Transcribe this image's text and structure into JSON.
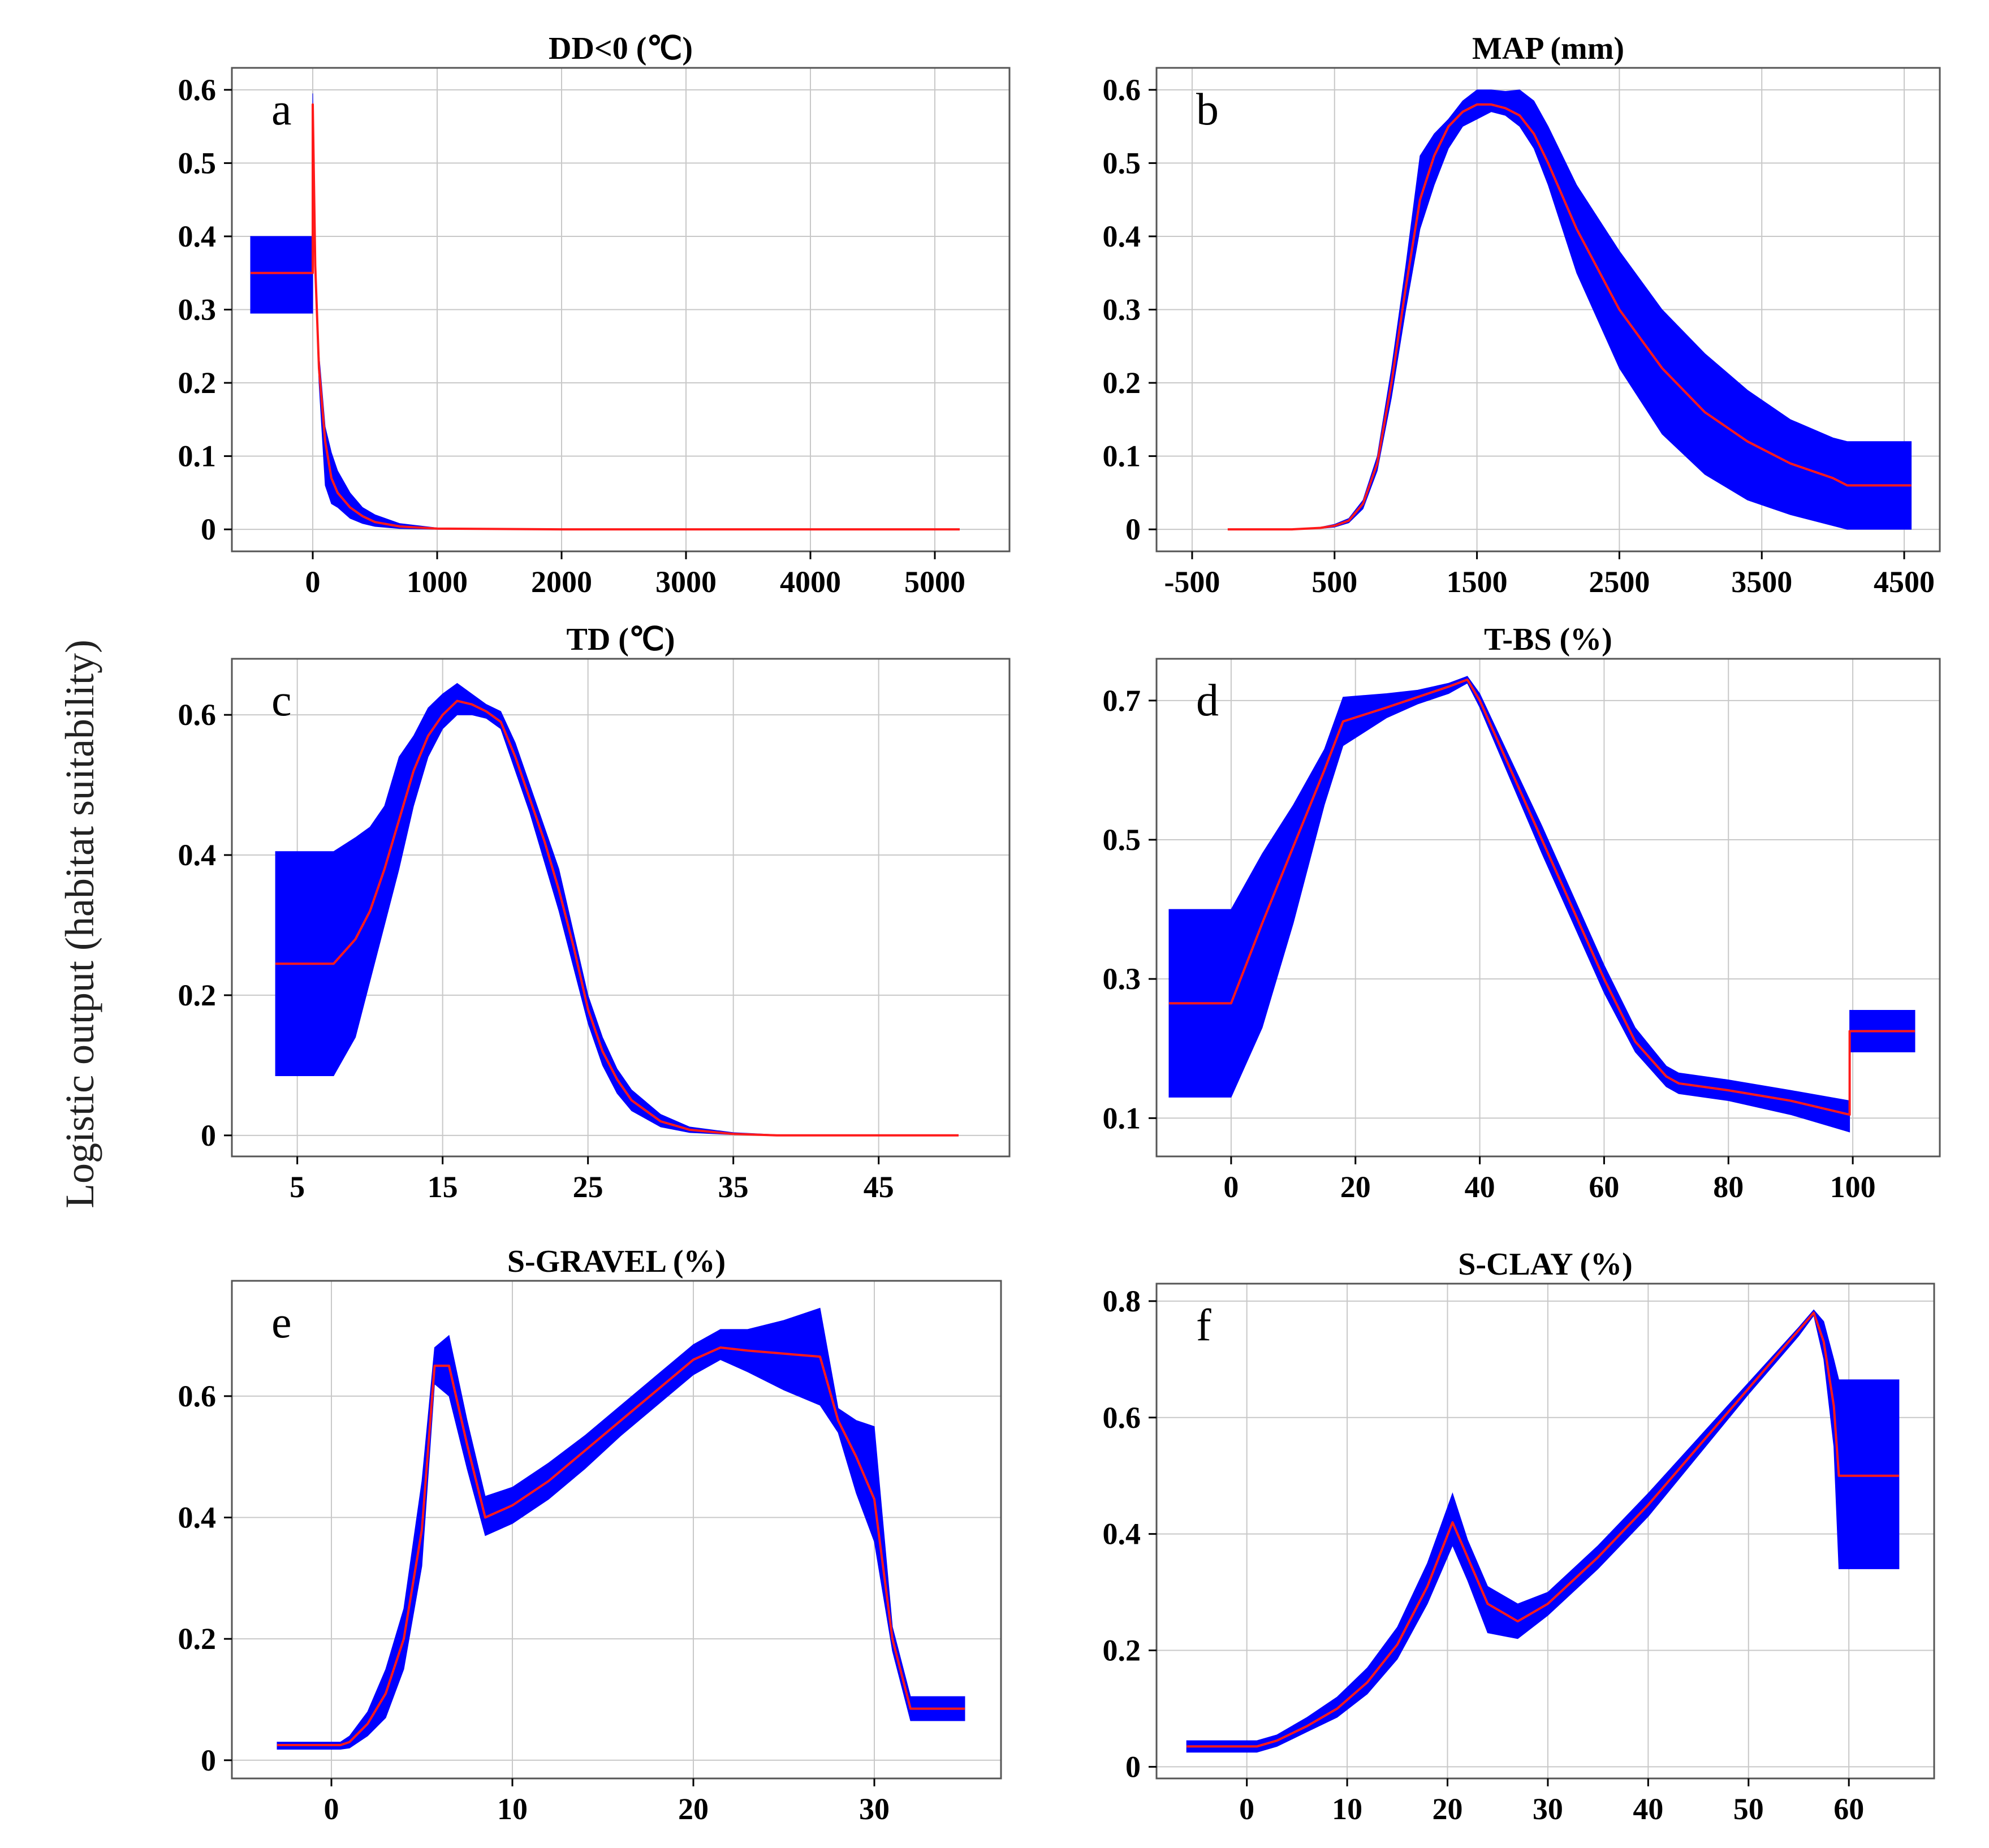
{
  "figure": {
    "ylabel": "Logistic output (habitat suitability)",
    "colors": {
      "band": "#0000ff",
      "line": "#ff1a1a",
      "grid": "#c8c8c8",
      "axis": "#555555"
    }
  },
  "chart_data": [
    {
      "letter": "a",
      "type": "area",
      "title": "DD<0 (℃)",
      "xlim": [
        -650,
        5600
      ],
      "ylim": [
        -0.03,
        0.63
      ],
      "xticks": [
        0,
        1000,
        2000,
        3000,
        4000,
        5000
      ],
      "xtick_labels": [
        "0",
        "1000",
        "2000",
        "3000",
        "4000",
        "5000"
      ],
      "yticks": [
        0,
        0.1,
        0.2,
        0.3,
        0.4,
        0.5,
        0.6
      ],
      "ytick_labels": [
        "0",
        "0.1",
        "0.2",
        "0.3",
        "0.4",
        "0.5",
        "0.6"
      ],
      "mean": {
        "x": [
          -500,
          0,
          0,
          20,
          50,
          100,
          150,
          200,
          300,
          400,
          500,
          700,
          1000,
          2000,
          5200
        ],
        "y": [
          0.35,
          0.35,
          0.58,
          0.36,
          0.22,
          0.12,
          0.07,
          0.05,
          0.03,
          0.018,
          0.01,
          0.004,
          0.001,
          0,
          0
        ]
      },
      "upper": {
        "x": [
          -500,
          0,
          0,
          20,
          50,
          100,
          150,
          200,
          300,
          400,
          500,
          700,
          1000,
          2000,
          5200
        ],
        "y": [
          0.4,
          0.4,
          0.595,
          0.38,
          0.24,
          0.14,
          0.105,
          0.08,
          0.05,
          0.03,
          0.02,
          0.008,
          0.002,
          0,
          0
        ]
      },
      "lower": {
        "x": [
          -500,
          0,
          0,
          20,
          50,
          100,
          150,
          200,
          300,
          400,
          500,
          700,
          1000,
          2000,
          5200
        ],
        "y": [
          0.295,
          0.295,
          0.56,
          0.34,
          0.2,
          0.06,
          0.035,
          0.03,
          0.015,
          0.008,
          0.004,
          0.001,
          0,
          0,
          0
        ]
      }
    },
    {
      "letter": "b",
      "type": "area",
      "title": "MAP (mm)",
      "xlim": [
        -750,
        4750
      ],
      "ylim": [
        -0.03,
        0.63
      ],
      "xticks": [
        -500,
        500,
        1500,
        2500,
        3500,
        4500
      ],
      "xtick_labels": [
        "-500",
        "500",
        "1500",
        "2500",
        "3500",
        "4500"
      ],
      "yticks": [
        0,
        0.1,
        0.2,
        0.3,
        0.4,
        0.5,
        0.6
      ],
      "ytick_labels": [
        "0",
        "0.1",
        "0.2",
        "0.3",
        "0.4",
        "0.5",
        "0.6"
      ],
      "mean": {
        "x": [
          -250,
          200,
          400,
          500,
          600,
          700,
          800,
          900,
          1000,
          1100,
          1200,
          1300,
          1400,
          1500,
          1600,
          1700,
          1800,
          1900,
          2000,
          2200,
          2500,
          2800,
          3100,
          3400,
          3700,
          4000,
          4100,
          4550
        ],
        "y": [
          0,
          0,
          0.002,
          0.005,
          0.012,
          0.035,
          0.09,
          0.2,
          0.33,
          0.45,
          0.51,
          0.55,
          0.57,
          0.58,
          0.58,
          0.575,
          0.565,
          0.54,
          0.5,
          0.41,
          0.3,
          0.22,
          0.16,
          0.12,
          0.09,
          0.07,
          0.06,
          0.06
        ]
      },
      "upper": {
        "x": [
          -250,
          200,
          400,
          500,
          600,
          700,
          800,
          900,
          1000,
          1100,
          1200,
          1300,
          1400,
          1500,
          1600,
          1700,
          1800,
          1900,
          2000,
          2200,
          2500,
          2800,
          3100,
          3400,
          3700,
          4000,
          4100,
          4550
        ],
        "y": [
          0,
          0,
          0.003,
          0.007,
          0.015,
          0.04,
          0.1,
          0.22,
          0.36,
          0.51,
          0.54,
          0.56,
          0.585,
          0.6,
          0.6,
          0.598,
          0.6,
          0.585,
          0.55,
          0.47,
          0.38,
          0.3,
          0.24,
          0.19,
          0.15,
          0.125,
          0.12,
          0.12
        ]
      },
      "lower": {
        "x": [
          -250,
          200,
          400,
          500,
          600,
          700,
          800,
          900,
          1000,
          1100,
          1200,
          1300,
          1400,
          1500,
          1600,
          1700,
          1800,
          1900,
          2000,
          2200,
          2500,
          2800,
          3100,
          3400,
          3700,
          4000,
          4100,
          4550
        ],
        "y": [
          0,
          0,
          0.001,
          0.003,
          0.009,
          0.028,
          0.08,
          0.18,
          0.3,
          0.41,
          0.47,
          0.52,
          0.55,
          0.56,
          0.57,
          0.565,
          0.55,
          0.52,
          0.47,
          0.35,
          0.22,
          0.13,
          0.075,
          0.04,
          0.02,
          0.005,
          0,
          0
        ]
      }
    },
    {
      "letter": "c",
      "type": "area",
      "title": "TD (℃)",
      "xlim": [
        0.5,
        54
      ],
      "ylim": [
        -0.03,
        0.68
      ],
      "xticks": [
        5,
        15,
        25,
        35,
        45
      ],
      "xtick_labels": [
        "5",
        "15",
        "25",
        "35",
        "45"
      ],
      "yticks": [
        0,
        0.2,
        0.4,
        0.6
      ],
      "ytick_labels": [
        "0",
        "0.2",
        "0.4",
        "0.6"
      ],
      "mean": {
        "x": [
          3.5,
          7.5,
          9,
          10,
          11,
          12,
          13,
          14,
          15,
          16,
          17,
          18,
          19,
          20,
          21,
          22,
          23,
          24,
          25,
          26,
          27,
          28,
          30,
          32,
          35,
          38,
          42,
          46,
          50.5
        ],
        "y": [
          0.245,
          0.245,
          0.28,
          0.32,
          0.38,
          0.45,
          0.52,
          0.57,
          0.6,
          0.62,
          0.615,
          0.605,
          0.59,
          0.54,
          0.48,
          0.42,
          0.35,
          0.27,
          0.18,
          0.12,
          0.08,
          0.05,
          0.02,
          0.008,
          0.002,
          0,
          0,
          0,
          0
        ]
      },
      "upper": {
        "x": [
          3.5,
          7.5,
          9,
          10,
          11,
          12,
          13,
          14,
          15,
          16,
          17,
          18,
          19,
          20,
          21,
          22,
          23,
          24,
          25,
          26,
          27,
          28,
          30,
          32,
          35,
          38,
          42,
          46,
          50.5
        ],
        "y": [
          0.405,
          0.405,
          0.425,
          0.44,
          0.47,
          0.54,
          0.57,
          0.61,
          0.63,
          0.645,
          0.63,
          0.615,
          0.605,
          0.56,
          0.5,
          0.44,
          0.38,
          0.29,
          0.2,
          0.14,
          0.095,
          0.065,
          0.03,
          0.012,
          0.004,
          0.001,
          0,
          0,
          0
        ]
      },
      "lower": {
        "x": [
          3.5,
          7.5,
          9,
          10,
          11,
          12,
          13,
          14,
          15,
          16,
          17,
          18,
          19,
          20,
          21,
          22,
          23,
          24,
          25,
          26,
          27,
          28,
          30,
          32,
          35,
          38,
          42,
          46,
          50.5
        ],
        "y": [
          0.085,
          0.085,
          0.14,
          0.22,
          0.3,
          0.38,
          0.47,
          0.54,
          0.58,
          0.6,
          0.6,
          0.595,
          0.58,
          0.52,
          0.46,
          0.39,
          0.32,
          0.24,
          0.16,
          0.1,
          0.06,
          0.035,
          0.012,
          0.004,
          0.001,
          0,
          0,
          0,
          0
        ]
      }
    },
    {
      "letter": "d",
      "type": "area",
      "title": "T-BS (%)",
      "xlim": [
        -12,
        114
      ],
      "ylim": [
        0.045,
        0.76
      ],
      "xticks": [
        0,
        20,
        40,
        60,
        80,
        100
      ],
      "xtick_labels": [
        "0",
        "20",
        "40",
        "60",
        "80",
        "100"
      ],
      "yticks": [
        0.1,
        0.3,
        0.5,
        0.7
      ],
      "ytick_labels": [
        "0.1",
        "0.3",
        "0.5",
        "0.7"
      ],
      "mean": {
        "x": [
          -10,
          0,
          5,
          10,
          15,
          18,
          25,
          30,
          35,
          38,
          40,
          45,
          50,
          55,
          60,
          65,
          70,
          72,
          80,
          90,
          99.5,
          99.5,
          110
        ],
        "y": [
          0.265,
          0.265,
          0.38,
          0.49,
          0.6,
          0.67,
          0.69,
          0.705,
          0.72,
          0.73,
          0.7,
          0.6,
          0.5,
          0.4,
          0.3,
          0.21,
          0.16,
          0.15,
          0.14,
          0.125,
          0.105,
          0.225,
          0.225
        ]
      },
      "upper": {
        "x": [
          -10,
          0,
          5,
          10,
          15,
          18,
          25,
          30,
          35,
          38,
          40,
          45,
          50,
          55,
          60,
          65,
          70,
          72,
          80,
          90,
          99.5,
          99.5,
          110
        ],
        "y": [
          0.4,
          0.4,
          0.48,
          0.55,
          0.63,
          0.705,
          0.71,
          0.715,
          0.725,
          0.735,
          0.71,
          0.615,
          0.52,
          0.42,
          0.32,
          0.23,
          0.175,
          0.165,
          0.155,
          0.14,
          0.125,
          0.255,
          0.255
        ]
      },
      "lower": {
        "x": [
          -10,
          0,
          5,
          10,
          15,
          18,
          25,
          30,
          35,
          38,
          40,
          45,
          50,
          55,
          60,
          65,
          70,
          72,
          80,
          90,
          99.5,
          99.5,
          110
        ],
        "y": [
          0.13,
          0.13,
          0.23,
          0.38,
          0.55,
          0.635,
          0.675,
          0.695,
          0.71,
          0.725,
          0.69,
          0.585,
          0.48,
          0.38,
          0.28,
          0.195,
          0.145,
          0.135,
          0.125,
          0.105,
          0.08,
          0.195,
          0.195
        ]
      }
    },
    {
      "letter": "e",
      "type": "area",
      "title": "S-GRAVEL (%)",
      "xlim": [
        -5.5,
        37
      ],
      "ylim": [
        -0.03,
        0.79
      ],
      "xticks": [
        0,
        10,
        20,
        30
      ],
      "xtick_labels": [
        "0",
        "10",
        "20",
        "30"
      ],
      "yticks": [
        0,
        0.2,
        0.4,
        0.6
      ],
      "ytick_labels": [
        "0",
        "0.2",
        "0.4",
        "0.6"
      ],
      "mean": {
        "x": [
          -3,
          0.5,
          1,
          2,
          3,
          4,
          5,
          5.7,
          6.5,
          7.5,
          8.5,
          10,
          12,
          14,
          16,
          18,
          20,
          21.5,
          23,
          25,
          27,
          28,
          29,
          30,
          31,
          32,
          35
        ],
        "y": [
          0.025,
          0.025,
          0.03,
          0.06,
          0.11,
          0.2,
          0.38,
          0.65,
          0.65,
          0.52,
          0.4,
          0.42,
          0.46,
          0.51,
          0.56,
          0.61,
          0.66,
          0.68,
          0.675,
          0.67,
          0.665,
          0.56,
          0.5,
          0.43,
          0.2,
          0.085,
          0.085
        ]
      },
      "upper": {
        "x": [
          -3,
          0.5,
          1,
          2,
          3,
          4,
          5,
          5.7,
          6.5,
          7.5,
          8.5,
          10,
          12,
          14,
          16,
          18,
          20,
          21.5,
          23,
          25,
          27,
          28,
          29,
          30,
          31,
          32,
          35
        ],
        "y": [
          0.03,
          0.03,
          0.04,
          0.08,
          0.15,
          0.25,
          0.46,
          0.68,
          0.7,
          0.56,
          0.435,
          0.45,
          0.49,
          0.535,
          0.585,
          0.635,
          0.685,
          0.71,
          0.71,
          0.725,
          0.745,
          0.58,
          0.56,
          0.55,
          0.22,
          0.105,
          0.105
        ]
      },
      "lower": {
        "x": [
          -3,
          0.5,
          1,
          2,
          3,
          4,
          5,
          5.7,
          6.5,
          7.5,
          8.5,
          10,
          12,
          14,
          16,
          18,
          20,
          21.5,
          23,
          25,
          27,
          28,
          29,
          30,
          31,
          32,
          35
        ],
        "y": [
          0.018,
          0.018,
          0.02,
          0.04,
          0.07,
          0.15,
          0.32,
          0.62,
          0.6,
          0.48,
          0.37,
          0.39,
          0.43,
          0.48,
          0.535,
          0.585,
          0.635,
          0.66,
          0.64,
          0.61,
          0.585,
          0.54,
          0.44,
          0.36,
          0.18,
          0.065,
          0.065
        ]
      }
    },
    {
      "letter": "f",
      "type": "area",
      "title": "S-CLAY (%)",
      "xlim": [
        -9,
        68.5
      ],
      "ylim": [
        -0.02,
        0.83
      ],
      "xticks": [
        0,
        10,
        20,
        30,
        40,
        50,
        60
      ],
      "xtick_labels": [
        "0",
        "10",
        "20",
        "30",
        "40",
        "50",
        "60"
      ],
      "yticks": [
        0,
        0.2,
        0.4,
        0.6,
        0.8
      ],
      "ytick_labels": [
        "0",
        "0.2",
        "0.4",
        "0.6",
        "0.8"
      ],
      "mean": {
        "x": [
          -6,
          1,
          3,
          6,
          9,
          12,
          15,
          18,
          20.5,
          22,
          24,
          27,
          30,
          35,
          40,
          45,
          50,
          55,
          56.5,
          57.5,
          58.5,
          59,
          65
        ],
        "y": [
          0.035,
          0.035,
          0.045,
          0.07,
          0.1,
          0.145,
          0.21,
          0.31,
          0.42,
          0.36,
          0.28,
          0.25,
          0.28,
          0.36,
          0.45,
          0.55,
          0.65,
          0.75,
          0.78,
          0.73,
          0.62,
          0.5,
          0.5
        ]
      },
      "upper": {
        "x": [
          -6,
          1,
          3,
          6,
          9,
          12,
          15,
          18,
          20.5,
          22,
          24,
          27,
          30,
          35,
          40,
          45,
          50,
          55,
          56.5,
          57.5,
          58.5,
          59,
          65
        ],
        "y": [
          0.045,
          0.045,
          0.055,
          0.085,
          0.12,
          0.17,
          0.24,
          0.35,
          0.47,
          0.39,
          0.31,
          0.28,
          0.3,
          0.38,
          0.47,
          0.565,
          0.66,
          0.755,
          0.785,
          0.765,
          0.7,
          0.665,
          0.665
        ]
      },
      "lower": {
        "x": [
          -6,
          1,
          3,
          6,
          9,
          12,
          15,
          18,
          20.5,
          22,
          24,
          27,
          30,
          35,
          40,
          45,
          50,
          55,
          56.5,
          57.5,
          58.5,
          59,
          65
        ],
        "y": [
          0.025,
          0.025,
          0.035,
          0.06,
          0.085,
          0.125,
          0.185,
          0.28,
          0.38,
          0.32,
          0.23,
          0.22,
          0.26,
          0.34,
          0.43,
          0.535,
          0.64,
          0.74,
          0.775,
          0.7,
          0.55,
          0.34,
          0.34
        ]
      }
    }
  ]
}
